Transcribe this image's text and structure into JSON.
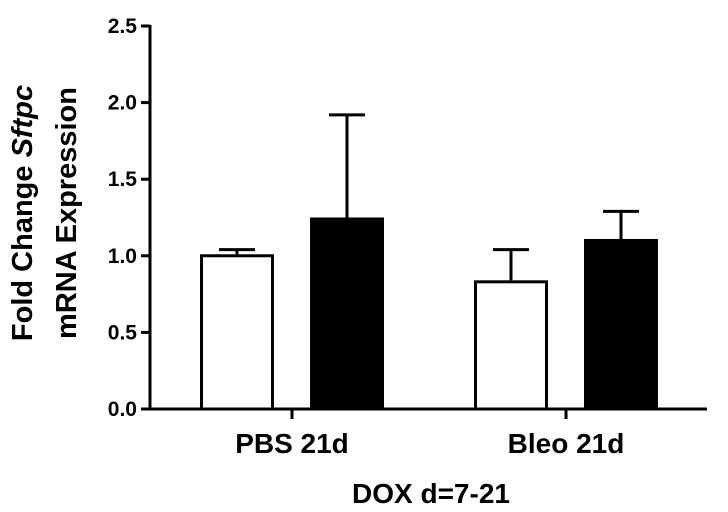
{
  "chart_data": {
    "type": "bar",
    "categories": [
      "PBS 21d",
      "Bleo 21d"
    ],
    "series": [
      {
        "values": [
          1.01,
          0.84
        ],
        "errors": [
          0.03,
          0.2
        ],
        "fill": "#ffffff",
        "stroke": "#000000"
      },
      {
        "values": [
          1.25,
          1.11
        ],
        "errors": [
          0.67,
          0.18
        ],
        "fill": "#000000",
        "stroke": "#000000"
      }
    ],
    "xlabel": "DOX d=7-21",
    "ylabel_line1_prefix": "Fold Change ",
    "ylabel_line1_gene": "Sftpc",
    "ylabel_line2": "mRNA Expression",
    "ylim": [
      0,
      2.5
    ],
    "yticks": [
      "0.0",
      "0.5",
      "1.0",
      "1.5",
      "2.0",
      "2.5"
    ],
    "grid": false,
    "legend": "none"
  }
}
